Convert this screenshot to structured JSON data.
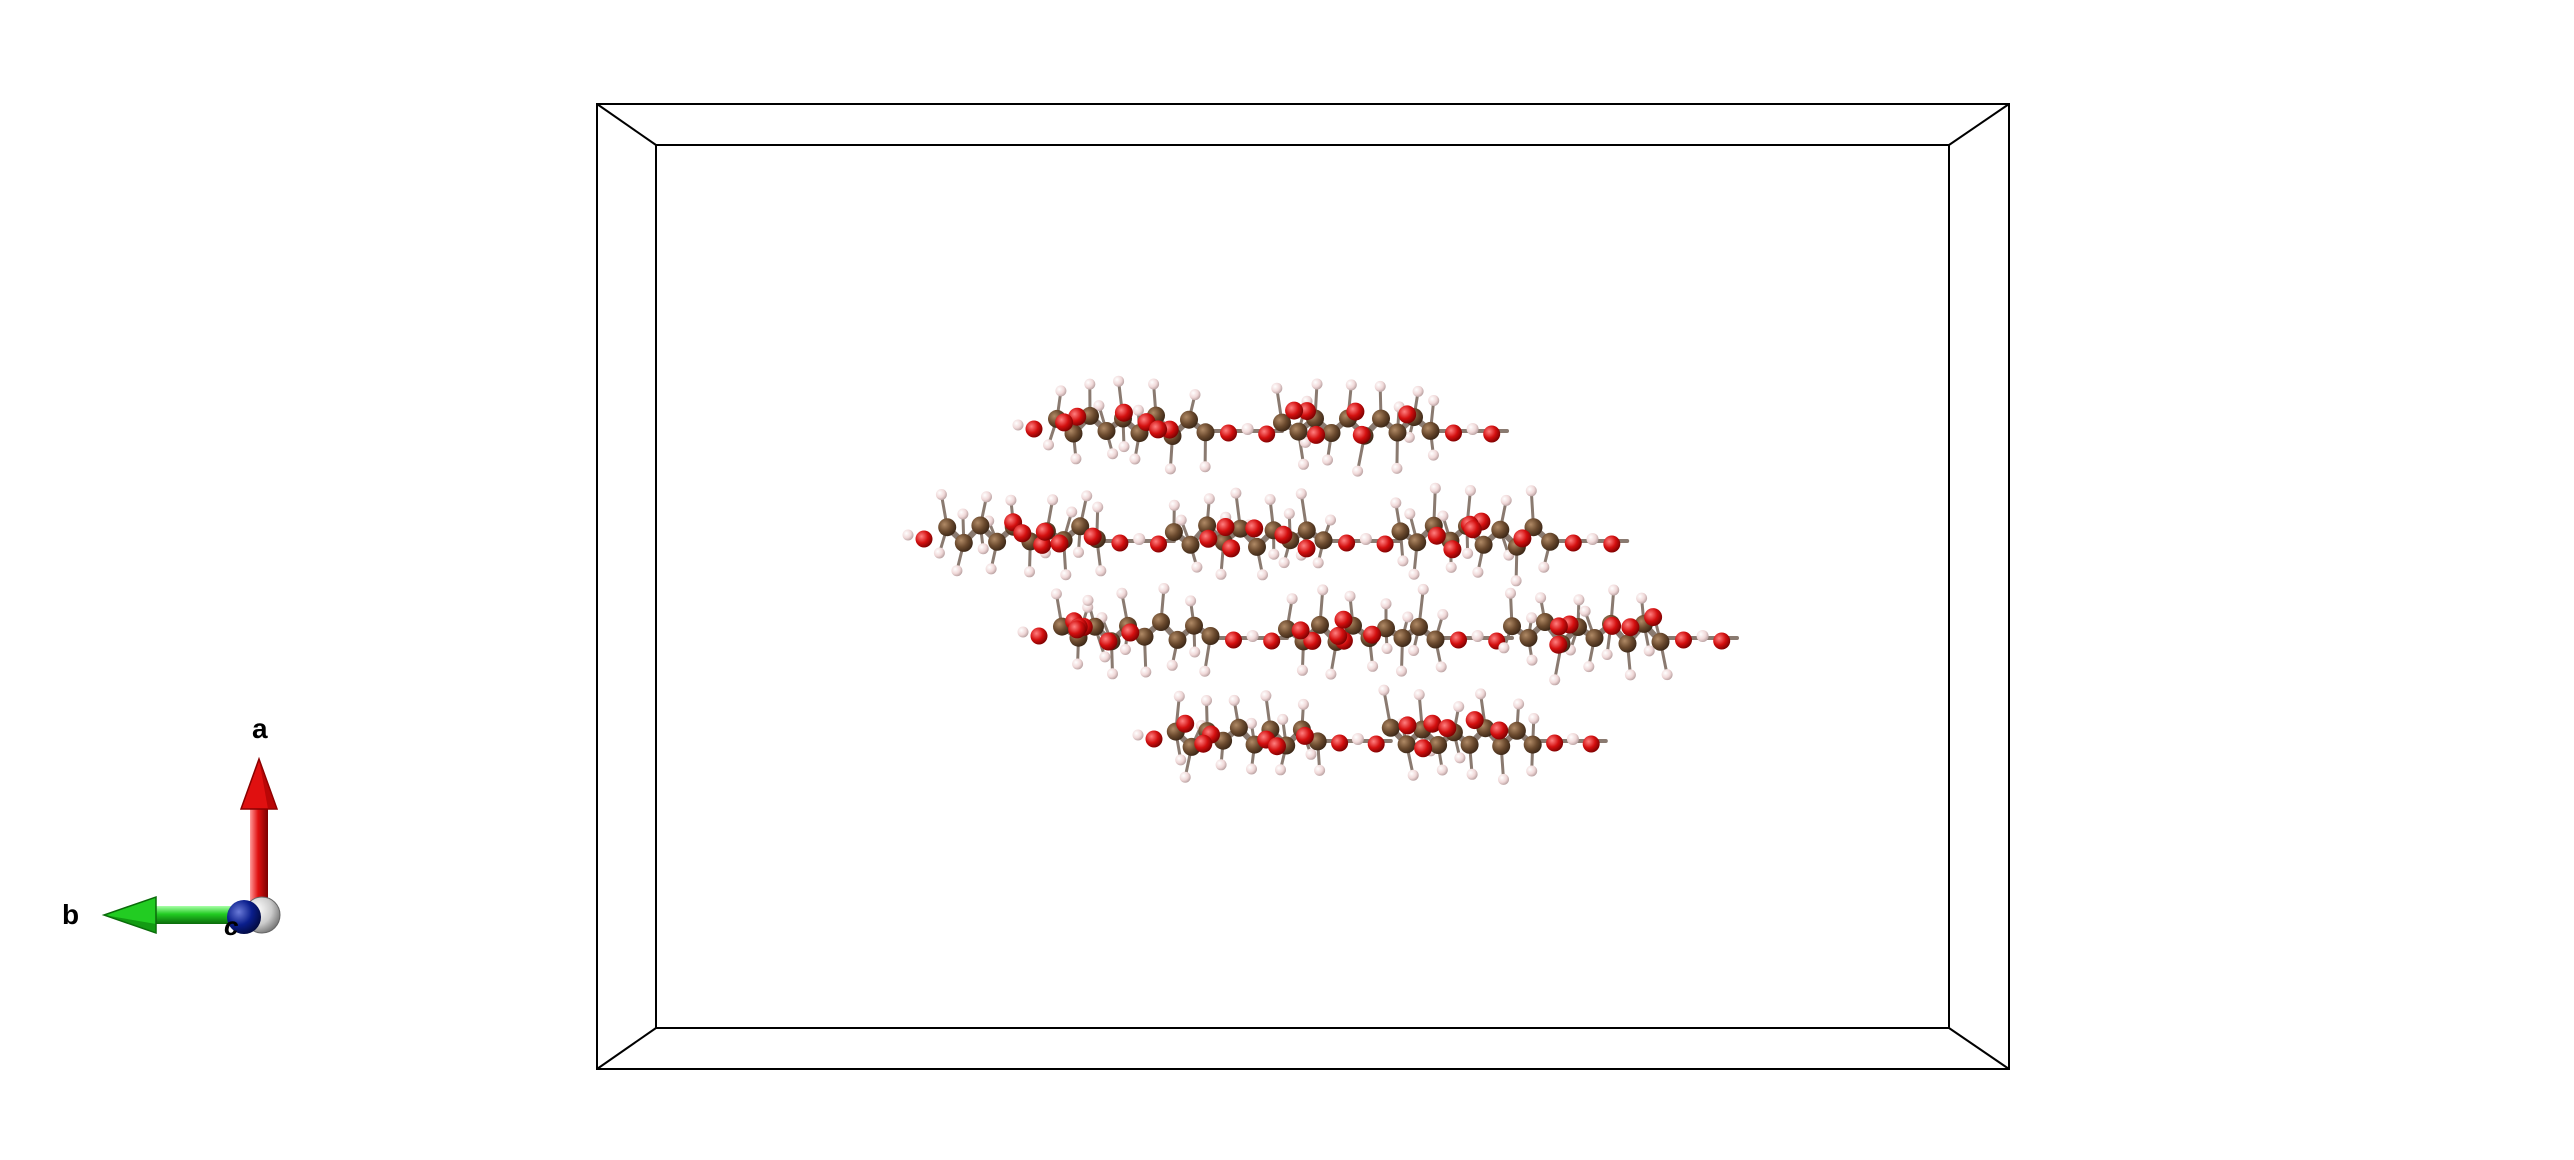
{
  "axes": {
    "a": {
      "label": "a",
      "color": "#e01010"
    },
    "b": {
      "label": "b",
      "color": "#22cc22"
    },
    "c": {
      "label": "c",
      "color": "#0a1e8c"
    }
  },
  "atom_colors": {
    "carbon": "#6b4a2e",
    "oxygen": "#d40f0f",
    "hydrogen": "#f0d8d8",
    "bond": "#8a7a70"
  },
  "cell": {
    "edge_color": "#000000"
  },
  "structure": {
    "chain_count": 4,
    "rings_per_chain": [
      2,
      3,
      3,
      2
    ]
  }
}
